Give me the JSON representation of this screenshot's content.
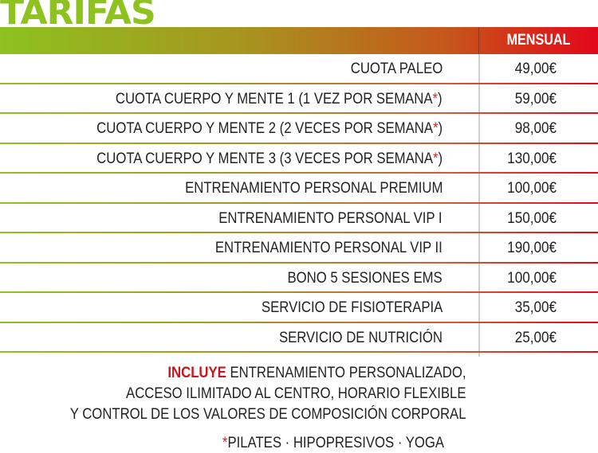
{
  "title": "TARIFAS",
  "header": {
    "column_label": "MENSUAL"
  },
  "colors": {
    "title_green": "#8dc21f",
    "accent_red": "#e3071a",
    "incluye_red": "#c4161c"
  },
  "rows": [
    {
      "label": "CUOTA PALEO",
      "star": false,
      "price": "49,00€"
    },
    {
      "label": "CUOTA CUERPO Y MENTE 1 (1 VEZ POR SEMANA",
      "star": true,
      "close": ")",
      "price": "59,00€"
    },
    {
      "label": "CUOTA CUERPO Y MENTE 2 (2 VECES POR SEMANA",
      "star": true,
      "close": ")",
      "price": "98,00€"
    },
    {
      "label": "CUOTA CUERPO Y MENTE 3 (3 VECES POR SEMANA",
      "star": true,
      "close": ")",
      "price": "130,00€"
    },
    {
      "label": "ENTRENAMIENTO PERSONAL PREMIUM",
      "star": false,
      "price": "100,00€"
    },
    {
      "label": "ENTRENAMIENTO PERSONAL VIP I",
      "star": false,
      "price": "150,00€"
    },
    {
      "label": "ENTRENAMIENTO PERSONAL VIP II",
      "star": false,
      "price": "190,00€"
    },
    {
      "label": "BONO 5 SESIONES EMS",
      "star": false,
      "price": "100,00€"
    },
    {
      "label": "SERVICIO DE FISIOTERAPIA",
      "star": false,
      "price": "35,00€"
    },
    {
      "label": "SERVICIO DE NUTRICIÓN",
      "star": false,
      "price": "25,00€"
    }
  ],
  "notes": {
    "incluye": "INCLUYE",
    "line1": " ENTRENAMIENTO PERSONALIZADO,",
    "line2": "ACCESO ILIMITADO AL CENTRO, HORARIO FLEXIBLE",
    "line3": "Y CONTROL DE LOS VALORES DE COMPOSICIÓN CORPORAL"
  },
  "footnote": {
    "star": "*",
    "text": "PILATES · HIPOPRESIVOS · YOGA"
  },
  "star_symbol": "*"
}
